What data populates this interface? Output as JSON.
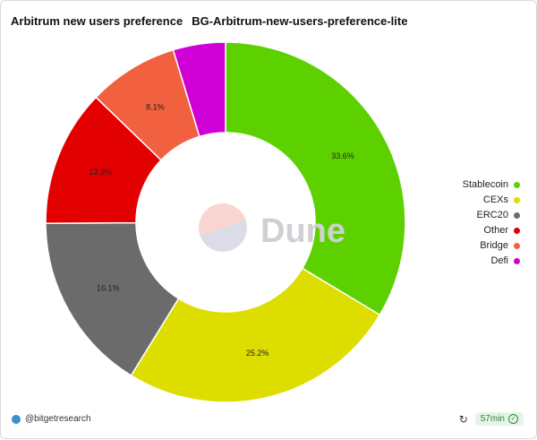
{
  "header": {
    "title": "Arbitrum new users preference",
    "subtitle": "BG-Arbitrum-new-users-preference-lite"
  },
  "chart_data": {
    "type": "pie",
    "donut": true,
    "start_angle_deg": 0,
    "direction": "clockwise",
    "legend_position": "right",
    "categories": [
      "Stablecoin",
      "CEXs",
      "ERC20",
      "Other",
      "Bridge",
      "Defi"
    ],
    "values": [
      33.6,
      25.2,
      16.1,
      12.3,
      8.1,
      4.7
    ],
    "value_labels": [
      "33.6%",
      "25.2%",
      "16.1%",
      "12.3%",
      "8.1%",
      ""
    ],
    "colors": [
      "#5dd100",
      "#dddd00",
      "#6b6b6b",
      "#e30000",
      "#f2613f",
      "#cf00d6"
    ]
  },
  "watermark": {
    "text": "Dune"
  },
  "footer": {
    "author": "@bitgetresearch",
    "refresh_icon": "refresh-icon",
    "age": "57min",
    "status_icon": "check-circle-icon"
  }
}
